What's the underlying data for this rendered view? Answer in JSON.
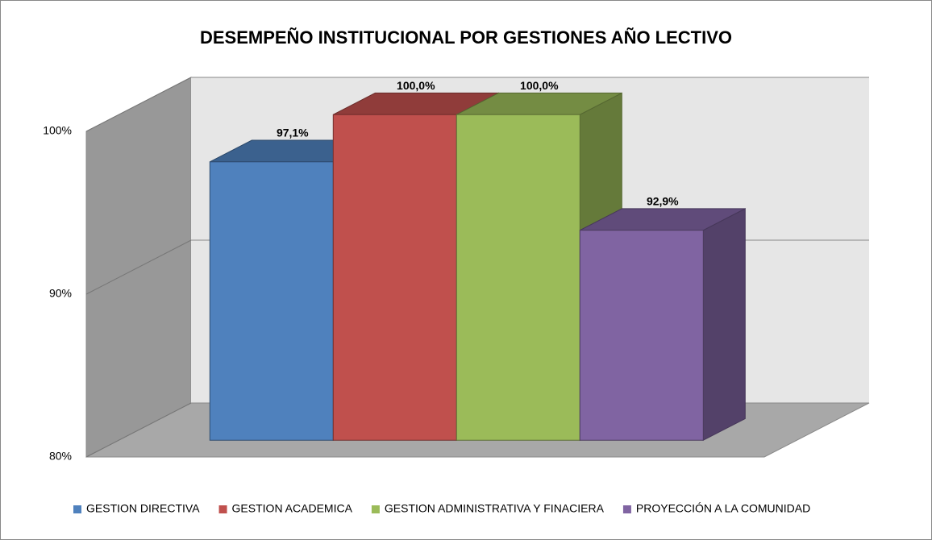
{
  "chart_data": {
    "type": "bar3d",
    "title": "DESEMPEÑO INSTITUCIONAL POR GESTIONES AÑO LECTIVO",
    "series": [
      {
        "name": "GESTION DIRECTIVA",
        "color": "#4f81bd",
        "values": [
          97.1
        ],
        "value_labels": [
          "97,1%"
        ]
      },
      {
        "name": "GESTION ACADEMICA",
        "color": "#c0504d",
        "values": [
          100
        ],
        "value_labels": [
          "100,0%"
        ]
      },
      {
        "name": "GESTION ADMINISTRATIVA Y FINACIERA",
        "color": "#9bbb59",
        "values": [
          100
        ],
        "value_labels": [
          "100,0%"
        ]
      },
      {
        "name": "PROYECCIÓN A LA COMUNIDAD",
        "color": "#8064a2",
        "values": [
          92.9
        ],
        "value_labels": [
          "92,9%"
        ]
      }
    ],
    "ylim": [
      80,
      100
    ],
    "yticks": [
      {
        "value": 80,
        "label": "80%"
      },
      {
        "value": 90,
        "label": "90%"
      },
      {
        "value": 100,
        "label": "100%"
      }
    ],
    "grid": true,
    "legend": "bottom"
  }
}
